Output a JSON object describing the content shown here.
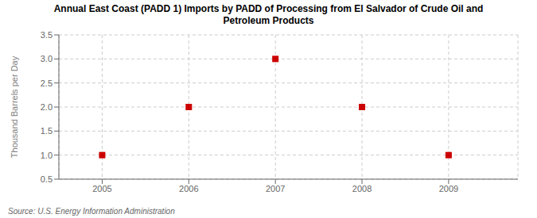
{
  "chart_data": {
    "type": "scatter",
    "title": "Annual East Coast (PADD 1) Imports by PADD of Processing from El Salvador of Crude Oil and\nPetroleum Products",
    "y_label": "Thousand Barrels per Day",
    "annotations": [
      "Source: U.S. Energy Information Administration"
    ],
    "x": [
      2005,
      2006,
      2007,
      2008,
      2009
    ],
    "values": [
      1.0,
      2.0,
      3.0,
      2.0,
      1.0
    ],
    "xlim": [
      2004.5,
      2009.8
    ],
    "ylim": [
      0.5,
      3.5
    ],
    "xticks": [
      2005,
      2006,
      2007,
      2008,
      2009
    ],
    "yticks": [
      0.5,
      {
        "value": 1.0,
        "label": "1.0"
      },
      1.5,
      {
        "value": 2.0,
        "label": "2.0"
      },
      2.5,
      {
        "value": 3.0,
        "label": "3.0"
      },
      3.5
    ],
    "color": "#cc0000",
    "marker": "square",
    "grid": true
  }
}
